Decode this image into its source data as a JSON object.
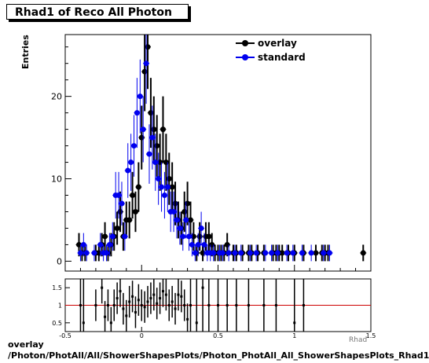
{
  "title": "Rhad1 of Reco All Photon",
  "ylabel": "Entries",
  "xlabel_partial": "Rhad",
  "footer": {
    "line1": "overlay",
    "line2": "/Photon/PhotAll/All/ShowerShapesPlots/Photon_PhotAll_All_ShowerShapesPlots_Rhad1"
  },
  "colors": {
    "overlay": "#000000",
    "standard": "#0000ee",
    "ratio_line": "#cc0000"
  },
  "chart_data": {
    "type": "scatter",
    "main": {
      "xlim": [
        -0.5,
        1.5
      ],
      "ylim": [
        -1.2,
        27.5
      ],
      "yticks": [
        0,
        10,
        20
      ],
      "xticks": [
        -0.5,
        0,
        0.5,
        1,
        1.5
      ],
      "legend_position": "top-right",
      "series": [
        {
          "name": "overlay",
          "x": [
            -0.41,
            -0.39,
            -0.37,
            -0.3,
            -0.28,
            -0.26,
            -0.24,
            -0.22,
            -0.2,
            -0.18,
            -0.16,
            -0.14,
            -0.12,
            -0.1,
            -0.08,
            -0.06,
            -0.04,
            -0.02,
            0.0,
            0.02,
            0.04,
            0.06,
            0.08,
            0.1,
            0.12,
            0.14,
            0.16,
            0.18,
            0.2,
            0.22,
            0.24,
            0.26,
            0.28,
            0.3,
            0.32,
            0.34,
            0.36,
            0.38,
            0.4,
            0.42,
            0.44,
            0.46,
            0.48,
            0.5,
            0.52,
            0.54,
            0.56,
            0.6,
            0.62,
            0.66,
            0.7,
            0.72,
            0.76,
            0.8,
            0.86,
            0.88,
            0.9,
            0.92,
            0.96,
            1.0,
            1.06,
            1.14,
            1.18,
            1.2,
            1.22,
            1.45
          ],
          "y": [
            2,
            1,
            1,
            1,
            1,
            2,
            3,
            1,
            2,
            3,
            4,
            6,
            3,
            5,
            5,
            8,
            6,
            9,
            15,
            23,
            26,
            18,
            16,
            14,
            12,
            16,
            12,
            10,
            9,
            7,
            5,
            4,
            6,
            7,
            5,
            3,
            1,
            3,
            1,
            3,
            3,
            2,
            1,
            1,
            1,
            1,
            2,
            1,
            1,
            1,
            1,
            1,
            1,
            1,
            1,
            1,
            1,
            1,
            1,
            1,
            1,
            1,
            1,
            1,
            1,
            1
          ]
        },
        {
          "name": "standard",
          "x": [
            -0.4,
            -0.38,
            -0.36,
            -0.31,
            -0.27,
            -0.25,
            -0.23,
            -0.21,
            -0.19,
            -0.17,
            -0.15,
            -0.13,
            -0.11,
            -0.09,
            -0.07,
            -0.05,
            -0.03,
            -0.01,
            0.01,
            0.03,
            0.05,
            0.07,
            0.09,
            0.11,
            0.13,
            0.15,
            0.17,
            0.19,
            0.21,
            0.23,
            0.25,
            0.27,
            0.29,
            0.31,
            0.33,
            0.35,
            0.37,
            0.39,
            0.41,
            0.43,
            0.45,
            0.47,
            0.51,
            0.53,
            0.57,
            0.61,
            0.65,
            0.71,
            0.75,
            0.81,
            0.85,
            0.89,
            0.95,
            0.99,
            1.05,
            1.11,
            1.19,
            1.23
          ],
          "y": [
            1,
            2,
            1,
            1,
            2,
            1,
            1,
            2,
            3,
            8,
            8,
            7,
            3,
            11,
            12,
            14,
            18,
            20,
            16,
            24,
            13,
            15,
            12,
            10,
            9,
            8,
            9,
            6,
            6,
            5,
            4,
            3,
            5,
            3,
            2,
            1,
            2,
            4,
            2,
            1,
            1,
            1,
            1,
            1,
            1,
            1,
            1,
            1,
            1,
            1,
            1,
            1,
            1,
            1,
            1,
            1,
            1,
            1
          ]
        }
      ]
    },
    "ratio": {
      "xlim": [
        -0.5,
        1.5
      ],
      "ylim": [
        0.25,
        1.75
      ],
      "yticks": [
        0.5,
        1,
        1.5
      ],
      "reference_line": 1,
      "x": [
        -0.4,
        -0.38,
        -0.3,
        -0.26,
        -0.24,
        -0.22,
        -0.2,
        -0.18,
        -0.16,
        -0.14,
        -0.12,
        -0.1,
        -0.08,
        -0.06,
        -0.04,
        -0.02,
        0.0,
        0.02,
        0.04,
        0.06,
        0.08,
        0.1,
        0.12,
        0.14,
        0.16,
        0.18,
        0.2,
        0.22,
        0.24,
        0.26,
        0.28,
        0.3,
        0.32,
        0.36,
        0.4,
        0.44,
        0.5,
        0.56,
        0.62,
        0.7,
        0.8,
        0.88,
        1.0,
        1.06
      ],
      "y": [
        1.0,
        0.5,
        1.0,
        1.5,
        0.67,
        1.0,
        0.5,
        1.0,
        1.2,
        1.4,
        0.9,
        0.7,
        1.1,
        1.25,
        0.8,
        1.15,
        1.0,
        0.95,
        1.1,
        1.2,
        1.3,
        1.05,
        1.2,
        1.4,
        1.3,
        1.0,
        1.1,
        0.9,
        1.3,
        1.25,
        1.0,
        0.6,
        1.0,
        0.5,
        1.5,
        1.0,
        1.0,
        1.0,
        1.0,
        1.0,
        1.0,
        1.0,
        0.5,
        1.0
      ]
    }
  }
}
